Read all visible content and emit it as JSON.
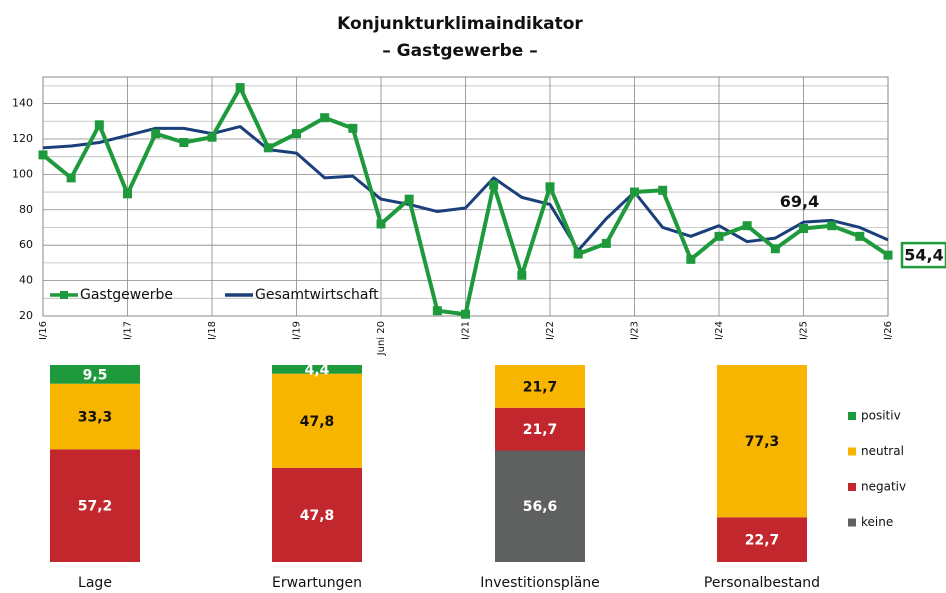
{
  "chart_data": [
    {
      "type": "line",
      "title": "Konjunkturklimaindikator",
      "subtitle": "– Gastgewerbe –",
      "categories": [
        "I/16",
        null,
        null,
        "I/17",
        null,
        null,
        "I/18",
        null,
        null,
        "I/19",
        null,
        null,
        "Juni 20",
        null,
        null,
        "I/21",
        null,
        null,
        "I/22",
        null,
        null,
        "I/23",
        null,
        null,
        "I/24",
        null,
        null,
        "I/25",
        null,
        null,
        "I/26"
      ],
      "series": [
        {
          "name": "Gastgewerbe",
          "color": "#1e9a3c",
          "values": [
            111,
            98,
            128,
            89,
            123,
            118,
            121,
            149,
            115,
            123,
            132,
            126,
            72,
            86,
            23,
            21,
            94,
            43,
            93,
            55,
            61,
            90,
            91,
            52,
            65,
            71,
            58,
            69.4,
            71,
            65,
            54.4
          ],
          "value_labels": [
            null,
            null,
            null,
            null,
            null,
            null,
            null,
            null,
            null,
            null,
            null,
            null,
            null,
            null,
            null,
            null,
            null,
            null,
            null,
            null,
            null,
            null,
            null,
            null,
            null,
            null,
            null,
            "69,4",
            null,
            null,
            "54,4"
          ]
        },
        {
          "name": "Gesamtwirtschaft",
          "color": "#1b3f7a",
          "values": [
            115,
            116,
            118,
            122,
            126,
            126,
            123,
            127,
            114,
            112,
            98,
            99,
            86,
            83,
            79,
            81,
            98,
            87,
            83,
            57,
            75,
            90,
            70,
            65,
            71,
            62,
            64,
            73,
            74,
            70,
            63
          ]
        }
      ],
      "ylim": [
        20,
        155
      ],
      "yticks": [
        20,
        40,
        60,
        80,
        100,
        120,
        140
      ],
      "yticks_minor": [
        30,
        50,
        70,
        90,
        110,
        130,
        150
      ],
      "grid": true
    },
    {
      "type": "stacked_bar",
      "categories": [
        "Lage",
        "Erwartungen",
        "Investitionspläne",
        "Personalbestand"
      ],
      "series": [
        {
          "name": "positiv",
          "color": "#1e9a3c",
          "values": [
            9.5,
            4.4,
            null,
            null
          ],
          "value_labels": [
            "9,5",
            "4,4",
            null,
            null
          ]
        },
        {
          "name": "neutral",
          "color": "#f7b500",
          "values": [
            33.3,
            47.8,
            21.7,
            77.3
          ],
          "value_labels": [
            "33,3",
            "47,8",
            "21,7",
            "77,3"
          ]
        },
        {
          "name": "negativ",
          "color": "#c1272d",
          "values": [
            57.2,
            47.8,
            21.7,
            22.7
          ],
          "value_labels": [
            "57,2",
            "47,8",
            "21,7",
            "22,7"
          ]
        },
        {
          "name": "keine",
          "color": "#5f6060",
          "values": [
            null,
            null,
            56.6,
            null
          ],
          "value_labels": [
            null,
            null,
            "56,6",
            null
          ]
        }
      ],
      "ylim": [
        0,
        100
      ]
    }
  ]
}
